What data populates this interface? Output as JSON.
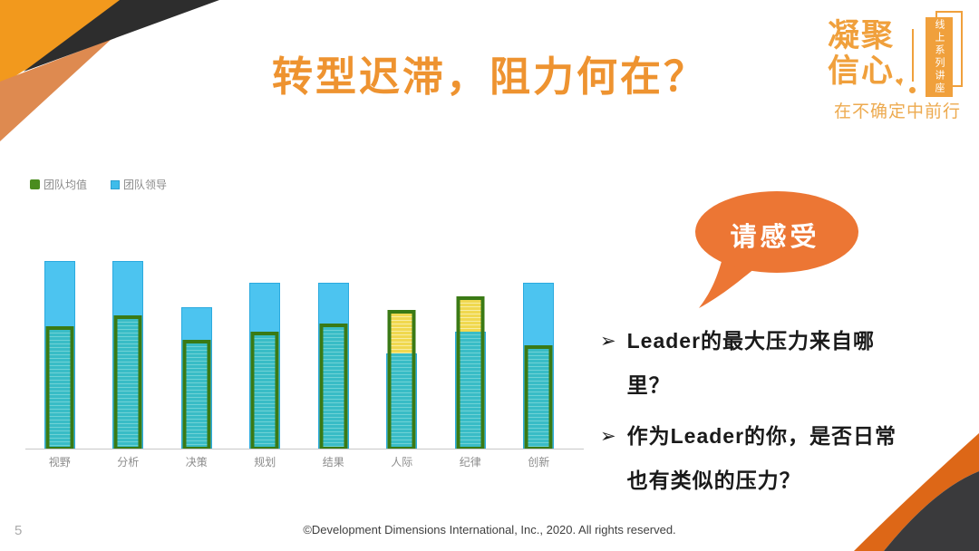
{
  "slide": {
    "title": "转型迟滞，阻力何在？",
    "page_number": "5",
    "footer": "©Development Dimensions International, Inc., 2020. All rights reserved."
  },
  "logo": {
    "name_line1": "凝聚",
    "name_line2": "信心",
    "heart_icon": "♥",
    "ribbon_text": "线上系列讲座",
    "tagline": "在不确定中前行",
    "brand_color": "#F0A03C"
  },
  "speech_bubble": {
    "label": "请感受",
    "color": "#EC7634"
  },
  "bullets": {
    "marker": "➢",
    "items": [
      "Leader的最大压力来自哪里？",
      "作为Leader的你，是否日常也有类似的压力？"
    ]
  },
  "chart_data": {
    "type": "bar",
    "categories": [
      "视野",
      "分析",
      "决策",
      "规划",
      "结果",
      "人际",
      "纪律",
      "创新"
    ],
    "series": [
      {
        "name": "团队均值",
        "values": [
          45,
          49,
          40,
          43,
          46,
          51,
          56,
          38
        ],
        "style": "hatched-overlay",
        "border_color": "#3A7A15",
        "fill_over_leader": "#39BCC6",
        "fill_above_leader": "#F0D84F"
      },
      {
        "name": "团队领导",
        "values": [
          69,
          69,
          52,
          61,
          61,
          35,
          43,
          61
        ],
        "style": "solid-background",
        "fill": "#4CC4F0",
        "border_color": "#2BAADF"
      }
    ],
    "ylim": [
      0,
      100
    ],
    "xlabel": "",
    "ylabel": "",
    "gridlines": false,
    "value_labels": false,
    "legend_position": "top-left",
    "axis_color": "#C8C8C8",
    "tick_label_color": "#8C8C8C"
  },
  "decor": {
    "corner_orange": "#F2991D",
    "corner_salmon": "#DE8A50",
    "corner_black": "#2D2D2D",
    "swoosh_orange": "#DD6717",
    "swoosh_dark": "#3A3A3C"
  }
}
